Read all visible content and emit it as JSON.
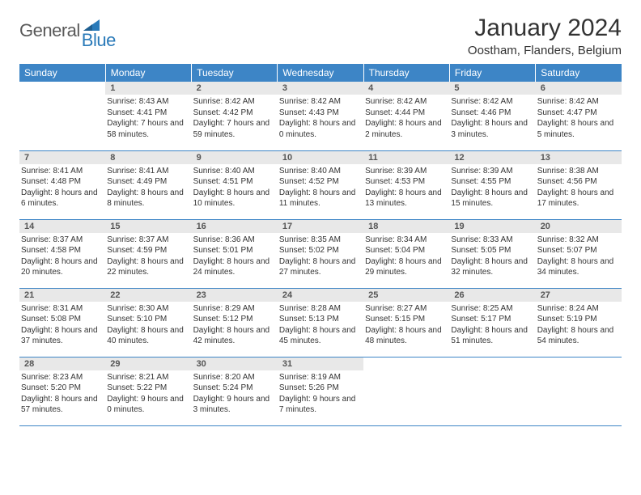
{
  "logo": {
    "general": "General",
    "blue": "Blue"
  },
  "title": "January 2024",
  "location": "Oostham, Flanders, Belgium",
  "colors": {
    "header_bg": "#3d85c6",
    "header_text": "#ffffff",
    "daynum_bg": "#e8e8e8",
    "border": "#3d85c6",
    "logo_gray": "#595959",
    "logo_blue": "#2a7ab9"
  },
  "weekdays": [
    "Sunday",
    "Monday",
    "Tuesday",
    "Wednesday",
    "Thursday",
    "Friday",
    "Saturday"
  ],
  "cells": [
    {
      "n": "",
      "sr": "",
      "ss": "",
      "dl": ""
    },
    {
      "n": "1",
      "sr": "Sunrise: 8:43 AM",
      "ss": "Sunset: 4:41 PM",
      "dl": "Daylight: 7 hours and 58 minutes."
    },
    {
      "n": "2",
      "sr": "Sunrise: 8:42 AM",
      "ss": "Sunset: 4:42 PM",
      "dl": "Daylight: 7 hours and 59 minutes."
    },
    {
      "n": "3",
      "sr": "Sunrise: 8:42 AM",
      "ss": "Sunset: 4:43 PM",
      "dl": "Daylight: 8 hours and 0 minutes."
    },
    {
      "n": "4",
      "sr": "Sunrise: 8:42 AM",
      "ss": "Sunset: 4:44 PM",
      "dl": "Daylight: 8 hours and 2 minutes."
    },
    {
      "n": "5",
      "sr": "Sunrise: 8:42 AM",
      "ss": "Sunset: 4:46 PM",
      "dl": "Daylight: 8 hours and 3 minutes."
    },
    {
      "n": "6",
      "sr": "Sunrise: 8:42 AM",
      "ss": "Sunset: 4:47 PM",
      "dl": "Daylight: 8 hours and 5 minutes."
    },
    {
      "n": "7",
      "sr": "Sunrise: 8:41 AM",
      "ss": "Sunset: 4:48 PM",
      "dl": "Daylight: 8 hours and 6 minutes."
    },
    {
      "n": "8",
      "sr": "Sunrise: 8:41 AM",
      "ss": "Sunset: 4:49 PM",
      "dl": "Daylight: 8 hours and 8 minutes."
    },
    {
      "n": "9",
      "sr": "Sunrise: 8:40 AM",
      "ss": "Sunset: 4:51 PM",
      "dl": "Daylight: 8 hours and 10 minutes."
    },
    {
      "n": "10",
      "sr": "Sunrise: 8:40 AM",
      "ss": "Sunset: 4:52 PM",
      "dl": "Daylight: 8 hours and 11 minutes."
    },
    {
      "n": "11",
      "sr": "Sunrise: 8:39 AM",
      "ss": "Sunset: 4:53 PM",
      "dl": "Daylight: 8 hours and 13 minutes."
    },
    {
      "n": "12",
      "sr": "Sunrise: 8:39 AM",
      "ss": "Sunset: 4:55 PM",
      "dl": "Daylight: 8 hours and 15 minutes."
    },
    {
      "n": "13",
      "sr": "Sunrise: 8:38 AM",
      "ss": "Sunset: 4:56 PM",
      "dl": "Daylight: 8 hours and 17 minutes."
    },
    {
      "n": "14",
      "sr": "Sunrise: 8:37 AM",
      "ss": "Sunset: 4:58 PM",
      "dl": "Daylight: 8 hours and 20 minutes."
    },
    {
      "n": "15",
      "sr": "Sunrise: 8:37 AM",
      "ss": "Sunset: 4:59 PM",
      "dl": "Daylight: 8 hours and 22 minutes."
    },
    {
      "n": "16",
      "sr": "Sunrise: 8:36 AM",
      "ss": "Sunset: 5:01 PM",
      "dl": "Daylight: 8 hours and 24 minutes."
    },
    {
      "n": "17",
      "sr": "Sunrise: 8:35 AM",
      "ss": "Sunset: 5:02 PM",
      "dl": "Daylight: 8 hours and 27 minutes."
    },
    {
      "n": "18",
      "sr": "Sunrise: 8:34 AM",
      "ss": "Sunset: 5:04 PM",
      "dl": "Daylight: 8 hours and 29 minutes."
    },
    {
      "n": "19",
      "sr": "Sunrise: 8:33 AM",
      "ss": "Sunset: 5:05 PM",
      "dl": "Daylight: 8 hours and 32 minutes."
    },
    {
      "n": "20",
      "sr": "Sunrise: 8:32 AM",
      "ss": "Sunset: 5:07 PM",
      "dl": "Daylight: 8 hours and 34 minutes."
    },
    {
      "n": "21",
      "sr": "Sunrise: 8:31 AM",
      "ss": "Sunset: 5:08 PM",
      "dl": "Daylight: 8 hours and 37 minutes."
    },
    {
      "n": "22",
      "sr": "Sunrise: 8:30 AM",
      "ss": "Sunset: 5:10 PM",
      "dl": "Daylight: 8 hours and 40 minutes."
    },
    {
      "n": "23",
      "sr": "Sunrise: 8:29 AM",
      "ss": "Sunset: 5:12 PM",
      "dl": "Daylight: 8 hours and 42 minutes."
    },
    {
      "n": "24",
      "sr": "Sunrise: 8:28 AM",
      "ss": "Sunset: 5:13 PM",
      "dl": "Daylight: 8 hours and 45 minutes."
    },
    {
      "n": "25",
      "sr": "Sunrise: 8:27 AM",
      "ss": "Sunset: 5:15 PM",
      "dl": "Daylight: 8 hours and 48 minutes."
    },
    {
      "n": "26",
      "sr": "Sunrise: 8:25 AM",
      "ss": "Sunset: 5:17 PM",
      "dl": "Daylight: 8 hours and 51 minutes."
    },
    {
      "n": "27",
      "sr": "Sunrise: 8:24 AM",
      "ss": "Sunset: 5:19 PM",
      "dl": "Daylight: 8 hours and 54 minutes."
    },
    {
      "n": "28",
      "sr": "Sunrise: 8:23 AM",
      "ss": "Sunset: 5:20 PM",
      "dl": "Daylight: 8 hours and 57 minutes."
    },
    {
      "n": "29",
      "sr": "Sunrise: 8:21 AM",
      "ss": "Sunset: 5:22 PM",
      "dl": "Daylight: 9 hours and 0 minutes."
    },
    {
      "n": "30",
      "sr": "Sunrise: 8:20 AM",
      "ss": "Sunset: 5:24 PM",
      "dl": "Daylight: 9 hours and 3 minutes."
    },
    {
      "n": "31",
      "sr": "Sunrise: 8:19 AM",
      "ss": "Sunset: 5:26 PM",
      "dl": "Daylight: 9 hours and 7 minutes."
    },
    {
      "n": "",
      "sr": "",
      "ss": "",
      "dl": ""
    },
    {
      "n": "",
      "sr": "",
      "ss": "",
      "dl": ""
    },
    {
      "n": "",
      "sr": "",
      "ss": "",
      "dl": ""
    }
  ]
}
